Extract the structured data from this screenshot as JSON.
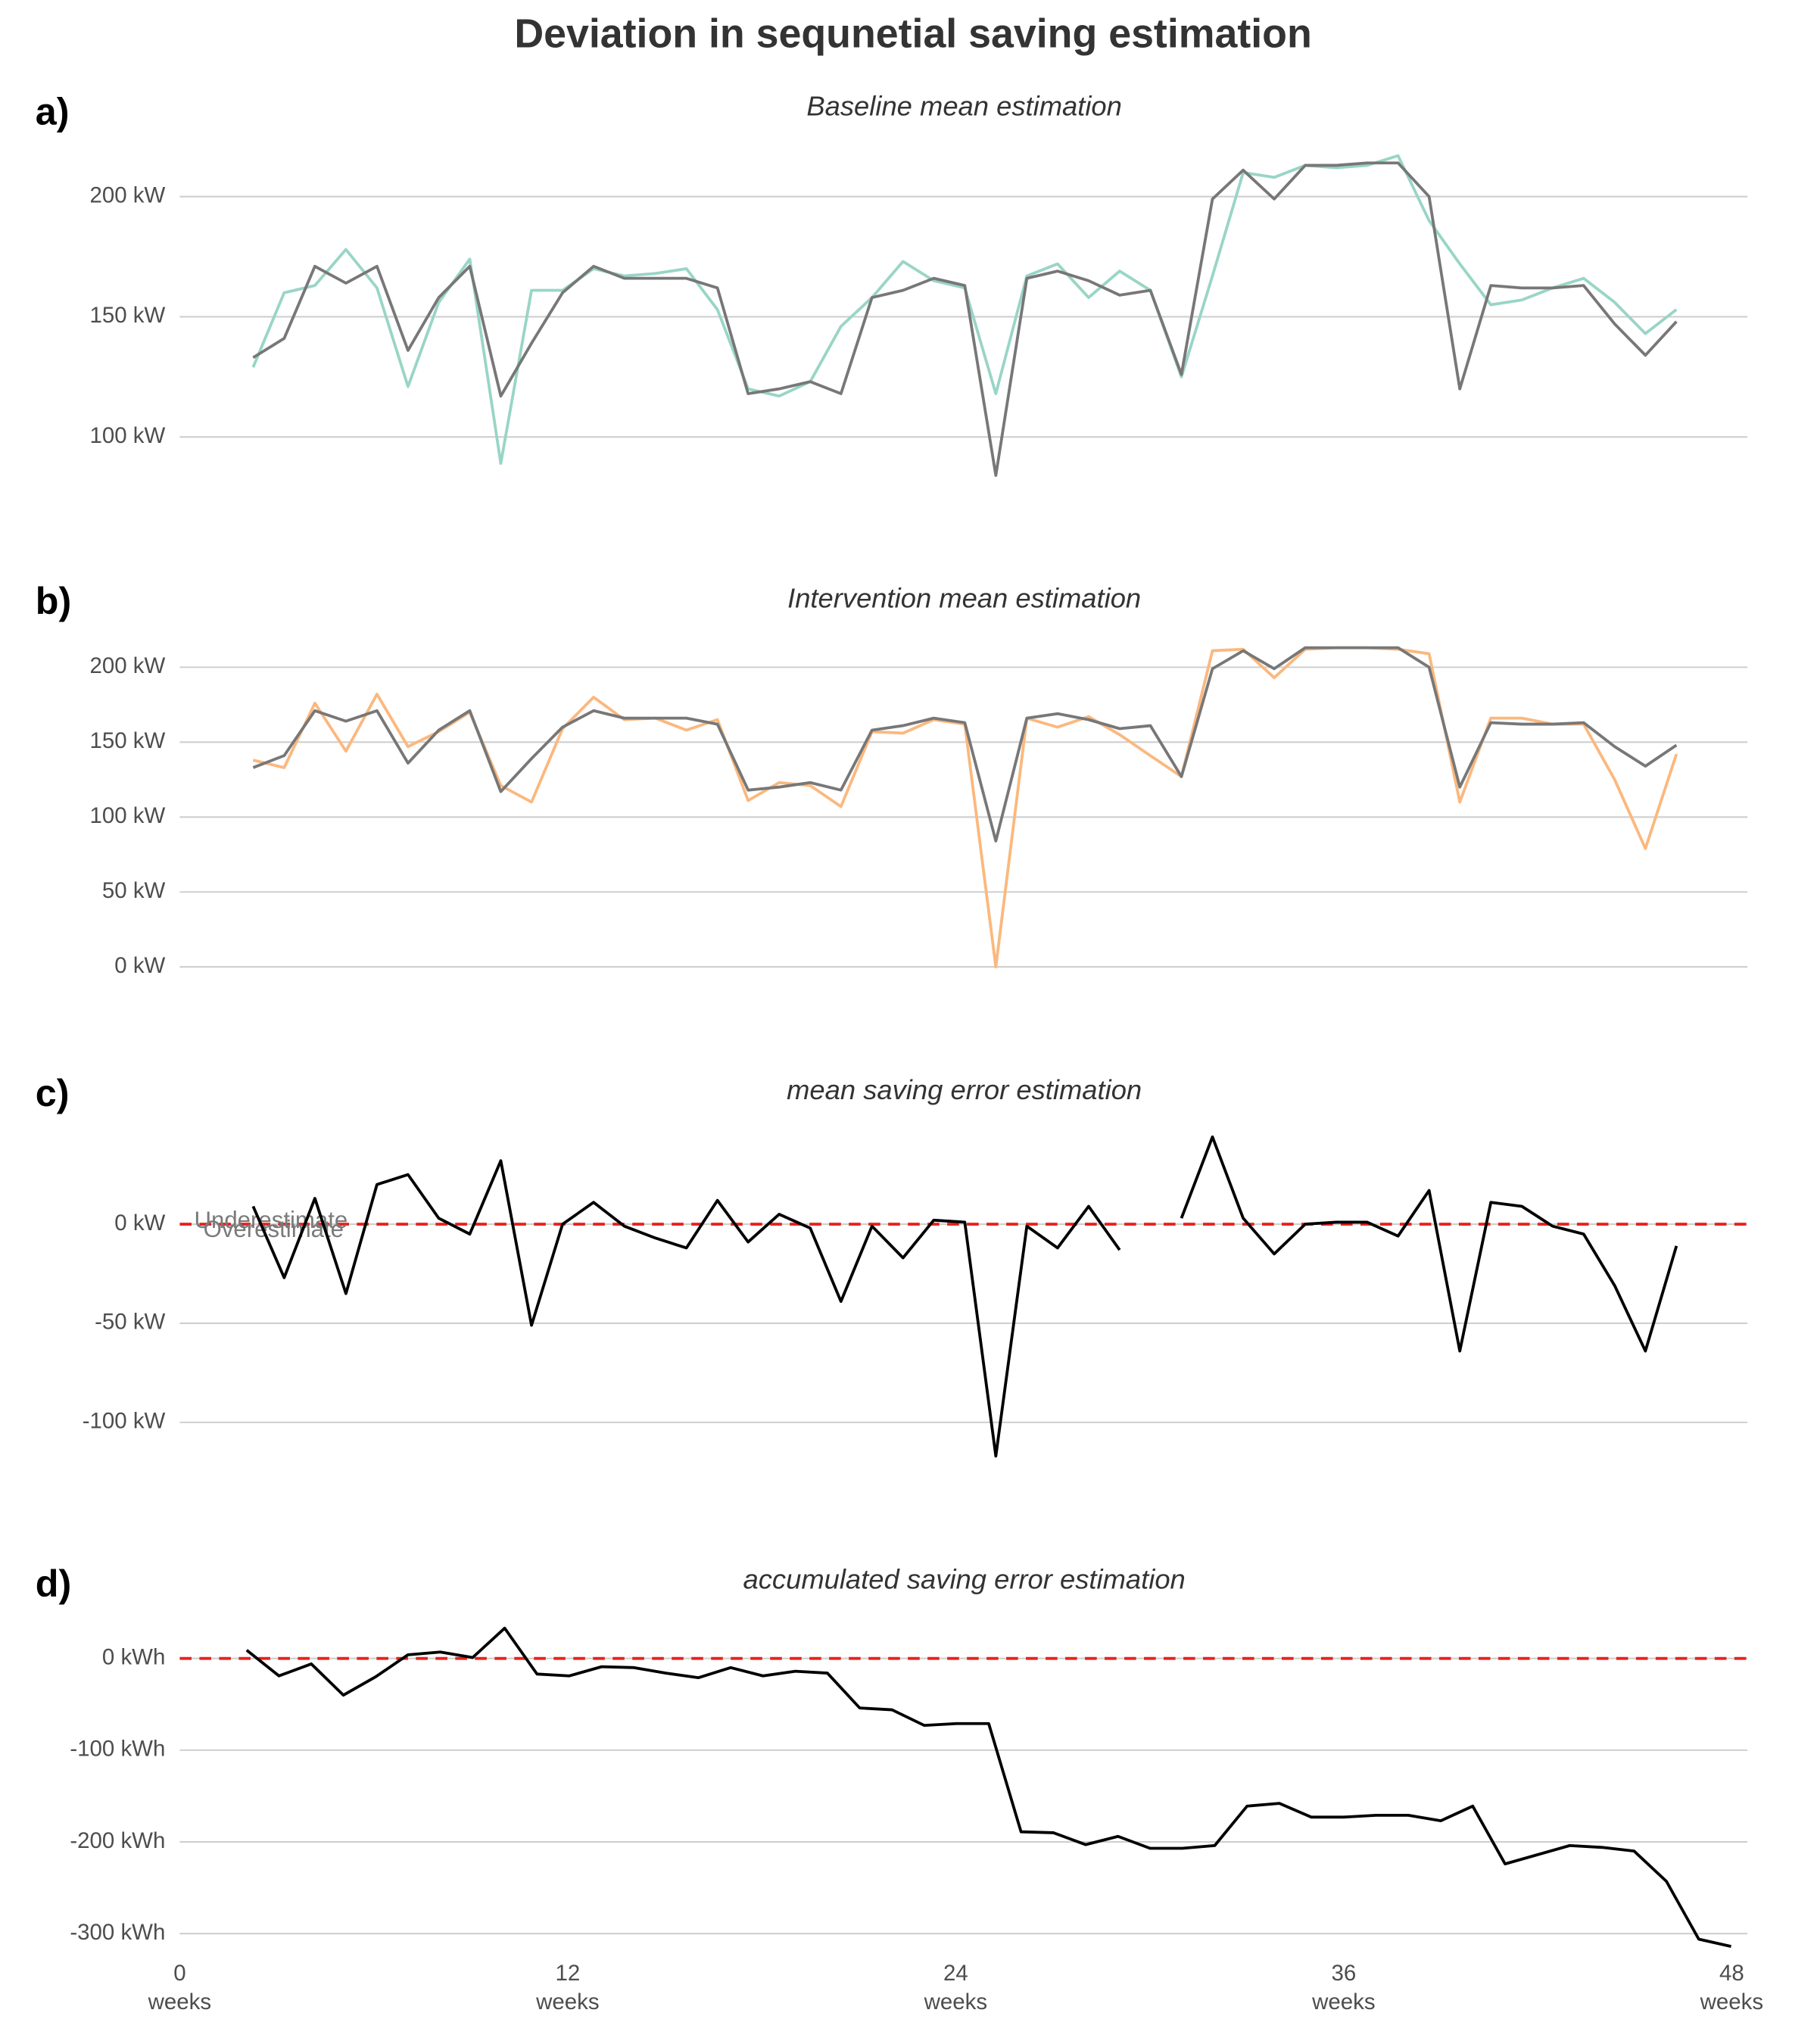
{
  "title": "Deviation in sequnetial saving estimation",
  "chart_data": [
    {
      "type": "line",
      "panel_label": "a)",
      "title": "Baseline mean estimation",
      "x": [
        2.27,
        3.23,
        4.18,
        5.14,
        6.1,
        7.06,
        8.01,
        8.97,
        9.93,
        10.88,
        11.84,
        12.8,
        13.75,
        14.71,
        15.67,
        16.63,
        17.58,
        18.54,
        19.5,
        20.45,
        21.41,
        22.37,
        23.32,
        24.28,
        25.24,
        26.2,
        27.15,
        28.11,
        29.07,
        30.02,
        30.98,
        31.94,
        32.89,
        33.85,
        34.81,
        35.77,
        36.72,
        37.68,
        38.64,
        39.59,
        40.55,
        41.51,
        42.46,
        43.42,
        44.38,
        45.33,
        46.29
      ],
      "series": [
        {
          "color": "#99d5c6",
          "values": [
            129,
            160,
            163,
            178,
            162,
            121,
            156,
            174,
            89,
            161,
            161,
            170,
            167,
            168,
            170,
            153,
            120,
            117,
            123,
            146,
            158,
            173,
            165,
            162,
            118,
            167,
            172,
            158,
            169,
            161,
            125,
            167,
            210,
            208,
            213,
            212,
            213,
            217,
            190,
            172,
            155,
            157,
            162,
            166,
            156,
            143,
            153
          ]
        },
        {
          "color": "#777777",
          "values": [
            133,
            141,
            171,
            164,
            171,
            136,
            158,
            171,
            117,
            139,
            160,
            171,
            166,
            166,
            166,
            162,
            118,
            120,
            123,
            118,
            158,
            161,
            166,
            163,
            84,
            166,
            169,
            165,
            159,
            161,
            126,
            199,
            211,
            199,
            213,
            213,
            214,
            214,
            200,
            120,
            163,
            162,
            162,
            163,
            147,
            134,
            148
          ]
        }
      ],
      "xlim": [
        0,
        48
      ],
      "ylim": [
        82,
        225
      ],
      "yticks": [
        {
          "value": 100,
          "label": "100 kW"
        },
        {
          "value": 150,
          "label": "150 kW"
        },
        {
          "value": 200,
          "label": "200 kW"
        }
      ],
      "grid": true
    },
    {
      "type": "line",
      "panel_label": "b)",
      "title": "Intervention mean estimation",
      "x": [
        2.27,
        3.23,
        4.18,
        5.14,
        6.1,
        7.06,
        8.01,
        8.97,
        9.93,
        10.88,
        11.84,
        12.8,
        13.75,
        14.71,
        15.67,
        16.63,
        17.58,
        18.54,
        19.5,
        20.45,
        21.41,
        22.37,
        23.32,
        24.28,
        25.24,
        26.2,
        27.15,
        28.11,
        29.07,
        30.02,
        30.98,
        31.94,
        32.89,
        33.85,
        34.81,
        35.77,
        36.72,
        37.68,
        38.64,
        39.59,
        40.55,
        41.51,
        42.46,
        43.42,
        44.38,
        45.33,
        46.29
      ],
      "series": [
        {
          "color": "#fbb87e",
          "values": [
            138,
            133,
            176,
            144,
            182,
            147,
            157,
            170,
            121,
            110,
            159,
            180,
            165,
            166,
            158,
            165,
            111,
            123,
            121,
            107,
            157,
            156,
            165,
            162,
            0,
            166,
            160,
            167,
            155,
            141,
            127,
            211,
            212,
            193,
            212,
            213,
            213,
            212,
            209,
            110,
            166,
            166,
            162,
            162,
            125,
            79,
            142
          ]
        },
        {
          "color": "#777777",
          "values": [
            133,
            141,
            171,
            164,
            171,
            136,
            158,
            171,
            117,
            139,
            160,
            171,
            166,
            166,
            166,
            162,
            118,
            120,
            123,
            118,
            158,
            161,
            166,
            163,
            84,
            166,
            169,
            165,
            159,
            161,
            127,
            199,
            211,
            199,
            213,
            213,
            213,
            213,
            200,
            120,
            163,
            162,
            162,
            163,
            147,
            134,
            148
          ]
        }
      ],
      "xlim": [
        0,
        48
      ],
      "ylim": [
        0,
        225
      ],
      "yticks": [
        {
          "value": 0,
          "label": "0 kW"
        },
        {
          "value": 50,
          "label": "50 kW"
        },
        {
          "value": 100,
          "label": "100 kW"
        },
        {
          "value": 150,
          "label": "150 kW"
        },
        {
          "value": 200,
          "label": "200 kW"
        }
      ],
      "grid": true
    },
    {
      "type": "line",
      "panel_label": "c)",
      "title": "mean saving error estimation",
      "x": [
        2.27,
        3.23,
        4.18,
        5.14,
        6.1,
        7.06,
        8.01,
        8.97,
        9.93,
        10.88,
        11.84,
        12.8,
        13.75,
        14.71,
        15.67,
        16.63,
        17.58,
        18.54,
        19.5,
        20.45,
        21.41,
        22.37,
        23.32,
        24.28,
        25.24,
        26.2,
        27.15,
        28.11,
        29.07,
        30.02,
        30.98,
        31.94,
        32.89,
        33.85,
        34.81,
        35.77,
        36.72,
        37.68,
        38.64,
        39.59,
        40.55,
        41.51,
        42.46,
        43.42,
        44.38,
        45.33,
        46.29
      ],
      "series": [
        {
          "color": "#000000",
          "values": [
            9,
            -27,
            13,
            -35,
            20,
            25,
            3,
            -5,
            32,
            -51,
            0,
            11,
            -1,
            -7,
            -12,
            12,
            -9,
            5,
            -2,
            -39,
            -1,
            -17,
            2,
            1,
            -117,
            -1,
            -12,
            9,
            -13,
            null,
            3,
            44,
            3,
            -15,
            0,
            1,
            1,
            -6,
            17,
            -64,
            11,
            9,
            -1,
            -5,
            -31,
            -64,
            -11
          ]
        }
      ],
      "reference_line": 0,
      "reference_color": "#e8221e",
      "annotations": [
        "Underestimate",
        "Overestimate"
      ],
      "xlim": [
        0,
        48
      ],
      "ylim": [
        -127,
        55
      ],
      "yticks": [
        {
          "value": -100,
          "label": "-100 kW"
        },
        {
          "value": -50,
          "label": "-50 kW"
        },
        {
          "value": 0,
          "label": "0 kW"
        }
      ],
      "grid": true
    },
    {
      "type": "line",
      "panel_label": "d)",
      "title": "accumulated saving error estimation",
      "x": [
        2.07,
        3.07,
        4.07,
        5.06,
        6.06,
        7.06,
        8.06,
        9.06,
        10.05,
        11.05,
        12.05,
        13.05,
        14.05,
        15.04,
        16.04,
        17.04,
        18.04,
        19.04,
        20.03,
        21.03,
        22.03,
        23.03,
        24.03,
        25.02,
        26.02,
        27.02,
        28.02,
        29.02,
        30.01,
        31.01,
        32.01,
        33.01,
        34.01,
        35.0,
        36.0,
        37.0,
        38.0,
        39.0,
        39.99,
        40.99,
        41.99,
        42.99,
        43.99,
        44.98,
        45.98,
        46.98,
        47.98
      ],
      "series": [
        {
          "color": "#000000",
          "values": [
            9,
            -19,
            -6,
            -40,
            -20,
            4,
            7,
            1,
            33,
            -17,
            -19,
            -9,
            -10,
            -16,
            -21,
            -10,
            -19,
            -14,
            -16,
            -54,
            -56,
            -73,
            -71,
            -71,
            -189,
            -190,
            -203,
            -194,
            -207,
            -207,
            -204,
            -161,
            -158,
            -173,
            -173,
            -171,
            -171,
            -177,
            -161,
            -224,
            -214,
            -204,
            -206,
            -210,
            -243,
            -306,
            -314
          ]
        }
      ],
      "reference_line": 0,
      "reference_color": "#e8221e",
      "xlim": [
        0,
        48
      ],
      "ylim": [
        -323,
        56
      ],
      "yticks": [
        {
          "value": -300,
          "label": "-300 kWh"
        },
        {
          "value": -200,
          "label": "-200 kWh"
        },
        {
          "value": -100,
          "label": "-100 kWh"
        },
        {
          "value": 0,
          "label": "0 kWh"
        }
      ],
      "xticks": [
        0,
        12,
        24,
        36,
        48
      ],
      "x_tick_unit": "weeks",
      "grid": true
    }
  ]
}
